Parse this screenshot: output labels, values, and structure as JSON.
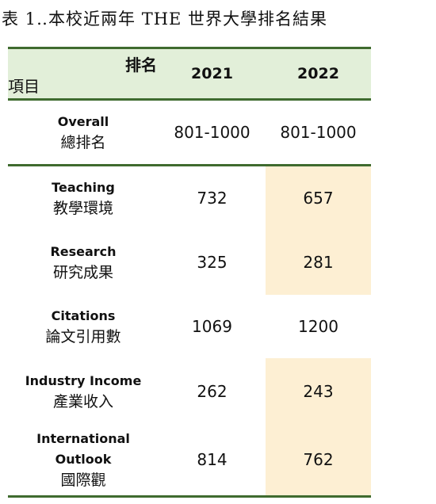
{
  "title": "表 1‥本校近兩年 THE 世界大學排名結果",
  "table": {
    "header": {
      "corner_top": "排名",
      "corner_bottom": "項目",
      "years": [
        "2021",
        "2022"
      ]
    },
    "rows": [
      {
        "label_en": [
          "Overall"
        ],
        "label_zh": "總排名",
        "values": [
          "801-1000",
          "801-1000"
        ]
      },
      {
        "label_en": [
          "Teaching"
        ],
        "label_zh": "教學環境",
        "values": [
          732,
          657
        ]
      },
      {
        "label_en": [
          "Research"
        ],
        "label_zh": "研究成果",
        "values": [
          325,
          281
        ]
      },
      {
        "label_en": [
          "Citations"
        ],
        "label_zh": "論文引用數",
        "values": [
          1069,
          1200
        ]
      },
      {
        "label_en": [
          "Industry Income"
        ],
        "label_zh": "產業收入",
        "values": [
          262,
          243
        ]
      },
      {
        "label_en": [
          "International",
          "Outlook"
        ],
        "label_zh": "國際觀",
        "values": [
          814,
          762
        ]
      }
    ]
  }
}
